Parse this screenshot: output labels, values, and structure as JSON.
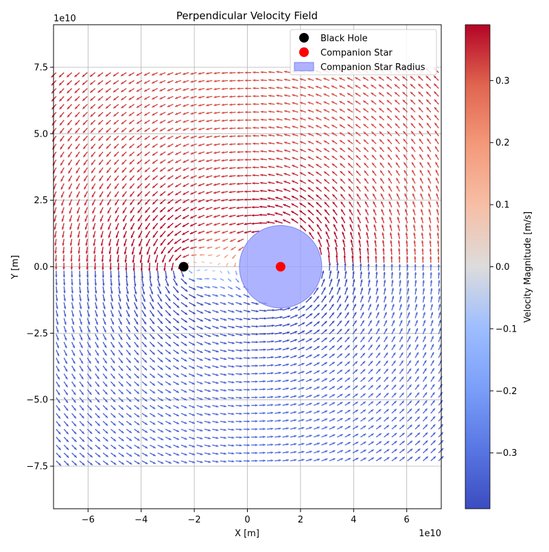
{
  "chart_data": {
    "type": "quiver",
    "title": "Perpendicular Velocity Field",
    "xlabel": "X [m]",
    "ylabel": "Y [m]",
    "x_exponent_label": "1e10",
    "y_exponent_label": "1e10",
    "xlim": [
      -7.3,
      7.3
    ],
    "ylim": [
      -9.1,
      9.1
    ],
    "xticks": [
      -6,
      -4,
      -2,
      0,
      2,
      4,
      6
    ],
    "xtick_labels": [
      "−6",
      "−4",
      "−2",
      "0",
      "2",
      "4",
      "6"
    ],
    "yticks": [
      -7.5,
      -5.0,
      -2.5,
      0.0,
      2.5,
      5.0,
      7.5
    ],
    "ytick_labels": [
      "−7.5",
      "−5.0",
      "−2.5",
      "0.0",
      "2.5",
      "5.0",
      "7.5"
    ],
    "grid": true,
    "legend_position": "top-right",
    "legend": [
      {
        "label": "Black Hole",
        "marker": "circle",
        "color": "#000000"
      },
      {
        "label": "Companion Star",
        "marker": "circle",
        "color": "#ff0000"
      },
      {
        "label": "Companion Star Radius",
        "marker": "patch",
        "color": "#9aa0ff"
      }
    ],
    "black_hole": {
      "x": -2.4,
      "y": 0.0
    },
    "companion_star": {
      "x": 1.25,
      "y": 0.0,
      "radius": 1.55
    },
    "field": {
      "x_range": [
        -7.2,
        7.2
      ],
      "y_range": [
        -7.3,
        7.3
      ],
      "nx": 50,
      "ny": 50
    },
    "colorbar": {
      "label": "Velocity Magnitude [m/s]",
      "min": -0.39,
      "max": 0.39,
      "ticks": [
        -0.3,
        -0.2,
        -0.1,
        0.0,
        0.1,
        0.2,
        0.3
      ],
      "tick_labels": [
        "−0.3",
        "−0.2",
        "−0.1",
        "0.0",
        "0.1",
        "0.2",
        "0.3"
      ],
      "colormap": "coolwarm"
    }
  }
}
